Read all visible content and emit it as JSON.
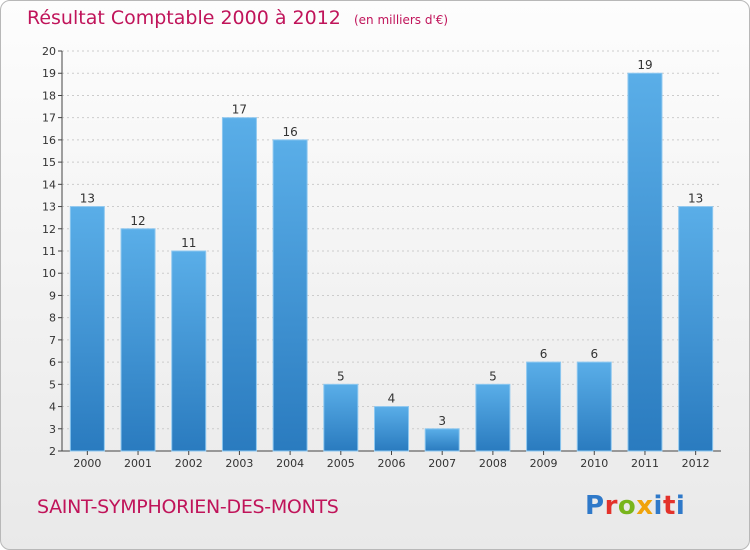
{
  "header": {
    "title": "Résultat Comptable 2000 à 2012",
    "subtitle": "(en milliers d'€)"
  },
  "footer": {
    "commune": "SAINT-SYMPHORIEN-DES-MONTS",
    "logo": "Proxiti"
  },
  "colors": {
    "title": "#c0145a",
    "bar_light": "#5aaee8",
    "bar_dark": "#2a7bbf",
    "grid": "#cccccc"
  },
  "chart_data": {
    "type": "bar",
    "title": "Résultat Comptable 2000 à 2012",
    "subtitle": "(en milliers d'€)",
    "categories": [
      "2000",
      "2001",
      "2002",
      "2003",
      "2004",
      "2005",
      "2006",
      "2007",
      "2008",
      "2009",
      "2010",
      "2011",
      "2012"
    ],
    "values": [
      13,
      12,
      11,
      17,
      16,
      5,
      4,
      3,
      5,
      6,
      6,
      19,
      13
    ],
    "ylim": [
      2,
      20
    ],
    "yticks": [
      2,
      3,
      4,
      5,
      6,
      7,
      8,
      9,
      10,
      11,
      12,
      13,
      14,
      15,
      16,
      17,
      18,
      19,
      20
    ],
    "grid": true,
    "legend": "none",
    "data_labels": true
  }
}
